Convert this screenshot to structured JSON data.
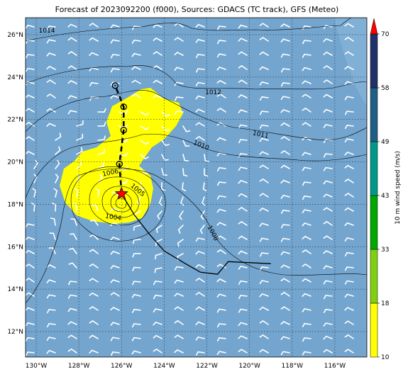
{
  "title": "Forecast of 2023092200 (f000), Sources: GDACS (TC track), GFS (Meteo)",
  "map": {
    "lon_range": [
      -130.5,
      -114.5
    ],
    "lat_range": [
      10.8,
      26.8
    ],
    "lon_ticks": [
      {
        "value": -130,
        "label": "130°W"
      },
      {
        "value": -128,
        "label": "128°W"
      },
      {
        "value": -126,
        "label": "126°W"
      },
      {
        "value": -124,
        "label": "124°W"
      },
      {
        "value": -122,
        "label": "122°W"
      },
      {
        "value": -120,
        "label": "120°W"
      },
      {
        "value": -118,
        "label": "118°W"
      },
      {
        "value": -116,
        "label": "116°W"
      }
    ],
    "lat_ticks": [
      {
        "value": 12,
        "label": "12°N"
      },
      {
        "value": 14,
        "label": "14°N"
      },
      {
        "value": 16,
        "label": "16°N"
      },
      {
        "value": 18,
        "label": "18°N"
      },
      {
        "value": 20,
        "label": "20°N"
      },
      {
        "value": 22,
        "label": "22°N"
      },
      {
        "value": 24,
        "label": "24°N"
      },
      {
        "value": 26,
        "label": "26°N"
      }
    ],
    "grid": true,
    "background_color": "#73a5cf",
    "wind_swath_color": "#ffff00",
    "storm_center": {
      "lon": -126.0,
      "lat": 18.5
    },
    "pressure_labels": [
      {
        "text": "1014",
        "lon": -129.5,
        "lat": 26.1
      },
      {
        "text": "1012",
        "lon": -121.7,
        "lat": 23.2
      },
      {
        "text": "1011",
        "lon": -119.5,
        "lat": 21.2
      },
      {
        "text": "1010",
        "lon": -122.3,
        "lat": 20.7
      },
      {
        "text": "1008",
        "lon": -121.8,
        "lat": 16.6
      },
      {
        "text": "1006",
        "lon": -126.5,
        "lat": 19.4
      },
      {
        "text": "1005",
        "lon": -125.3,
        "lat": 18.6
      },
      {
        "text": "1004",
        "lon": -126.4,
        "lat": 17.3
      }
    ]
  },
  "track": {
    "past": [
      {
        "lon": -119.0,
        "lat": 15.2
      },
      {
        "lon": -121.0,
        "lat": 15.3
      },
      {
        "lon": -121.5,
        "lat": 14.7
      },
      {
        "lon": -122.3,
        "lat": 14.8
      },
      {
        "lon": -123.0,
        "lat": 15.2
      },
      {
        "lon": -124.0,
        "lat": 15.8
      },
      {
        "lon": -124.7,
        "lat": 16.6
      },
      {
        "lon": -125.4,
        "lat": 17.5
      },
      {
        "lon": -126.0,
        "lat": 18.5
      }
    ],
    "forecast": [
      {
        "lon": -126.0,
        "lat": 18.5
      },
      {
        "lon": -126.1,
        "lat": 19.9
      },
      {
        "lon": -125.9,
        "lat": 21.5
      },
      {
        "lon": -125.9,
        "lat": 22.6
      },
      {
        "lon": -126.3,
        "lat": 23.6
      }
    ]
  },
  "colorbar": {
    "label": "10 m wind speed (m/s)",
    "ticks": [
      "10",
      "18",
      "33",
      "43",
      "49",
      "58",
      "70"
    ],
    "colors": [
      "#ffff00",
      "#80d010",
      "#00a800",
      "#009a8a",
      "#1f5f86",
      "#1f3168"
    ],
    "extend_color": "#ff0000"
  }
}
